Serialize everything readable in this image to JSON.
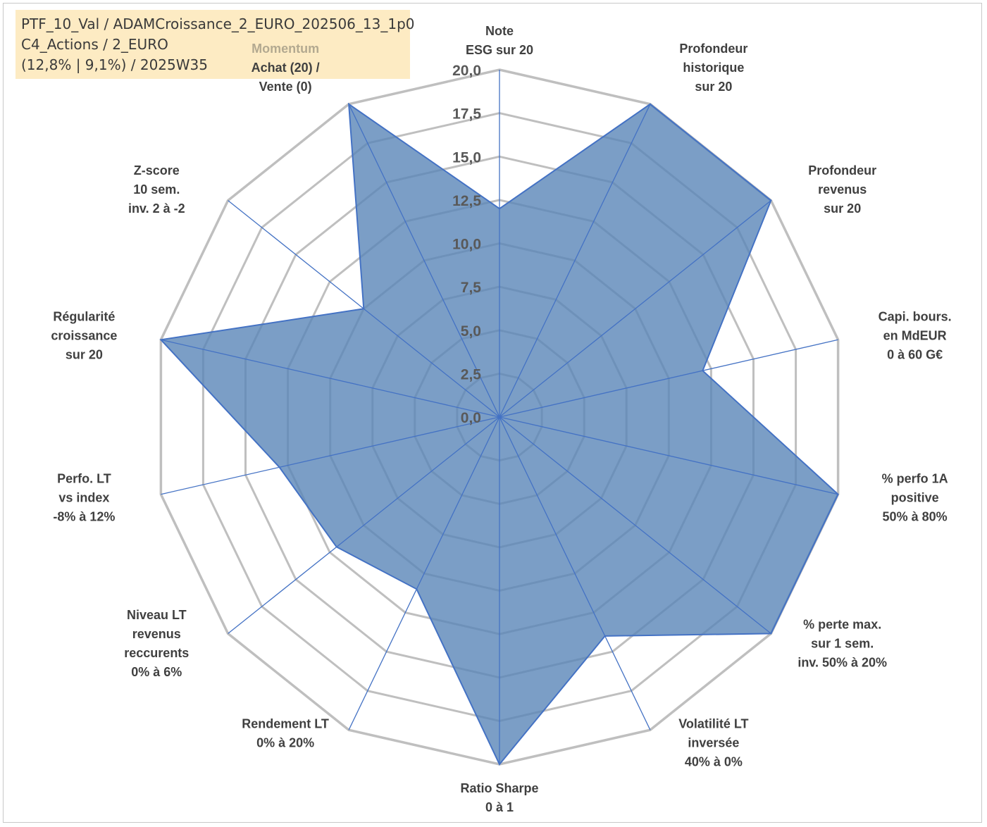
{
  "info": {
    "line1": "PTF_10_Val / ADAMCroissance_2_EURO_202506_13_1p0",
    "line2": "C4_Actions / 2_EURO",
    "line3": "(12,8% | 9,1%) / 2025W35"
  },
  "chart_data": {
    "type": "radar",
    "rmin": 0,
    "rmax": 20,
    "ticks": [
      "0,0",
      "2,5",
      "5,0",
      "7,5",
      "10,0",
      "12,5",
      "15,0",
      "17,5",
      "20,0"
    ],
    "grid": true,
    "colors": {
      "fill": "#5a86b8",
      "line": "#4472c4",
      "grid": "#bfbfbf",
      "highlight_label": "#b3a990"
    },
    "axes": [
      {
        "label": [
          "Note",
          "ESG sur 20"
        ],
        "value": 12
      },
      {
        "label": [
          "Profondeur",
          "historique",
          "sur 20"
        ],
        "value": 20
      },
      {
        "label": [
          "Profondeur",
          "revenus",
          "sur 20"
        ],
        "value": 20
      },
      {
        "label": [
          "Capi. bours.",
          "en MdEUR",
          "0 à 60 G€"
        ],
        "value": 12
      },
      {
        "label": [
          "% perfo 1A",
          "positive",
          "50% à 80%"
        ],
        "value": 20
      },
      {
        "label": [
          "% perte max.",
          "sur 1 sem.",
          "inv. 50% à 20%"
        ],
        "value": 20
      },
      {
        "label": [
          "Volatilité LT",
          "inversée",
          "40% à 0%"
        ],
        "value": 14
      },
      {
        "label": [
          "Ratio Sharpe",
          "0 à 1"
        ],
        "value": 20
      },
      {
        "label": [
          "Rendement LT",
          "0% à 20%"
        ],
        "value": 11
      },
      {
        "label": [
          "Niveau LT",
          "revenus",
          "reccurents",
          "0% à 6%"
        ],
        "value": 12
      },
      {
        "label": [
          "Perfo. LT",
          "vs index",
          "-8% à 12%"
        ],
        "value": 13
      },
      {
        "label": [
          "Régularité",
          "croissance",
          "sur 20"
        ],
        "value": 20
      },
      {
        "label": [
          "Z-score",
          "10 sem.",
          "inv. 2 à -2"
        ],
        "value": 10
      },
      {
        "label": [
          "Momentum",
          "Achat (20) /",
          "Vente (0)"
        ],
        "value": 20,
        "highlight_first_line": true
      }
    ]
  }
}
